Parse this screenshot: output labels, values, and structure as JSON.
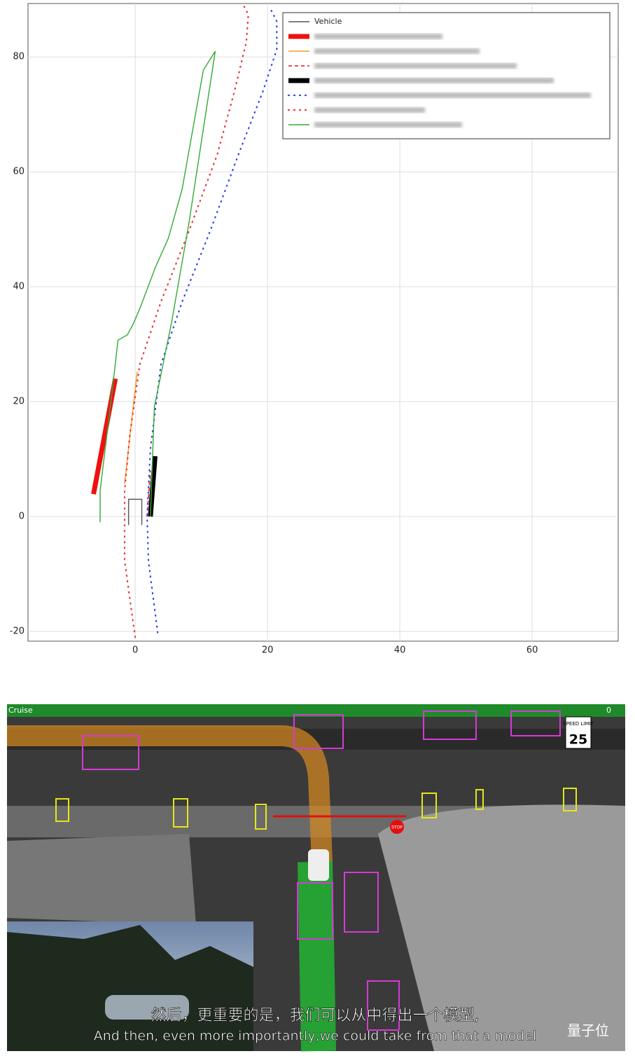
{
  "chart_data": {
    "type": "line",
    "xlim": [
      -16.2,
      73
    ],
    "ylim": [
      -21.7,
      89.3
    ],
    "xticks": [
      0,
      20,
      40,
      60
    ],
    "yticks": [
      -20,
      0,
      20,
      40,
      60,
      80
    ],
    "grid": true,
    "legend": "upper right",
    "series": [
      {
        "name": "Vehicle",
        "color": "#555555",
        "style": "line",
        "x": [
          -1,
          -1,
          1,
          1
        ],
        "values": [
          -1.5,
          3,
          3,
          -1.5
        ]
      },
      {
        "color": "#ee1111",
        "style": "thick",
        "x": [
          -6.3,
          -3
        ],
        "values": [
          3.9,
          24
        ]
      },
      {
        "color": "#f39c2a",
        "style": "line",
        "x": [
          -1.6,
          0.3
        ],
        "values": [
          5.7,
          25.2
        ]
      },
      {
        "color": "#ee1111",
        "style": "dashed",
        "x": [
          1.8,
          2.3
        ],
        "values": [
          0,
          8
        ]
      },
      {
        "color": "#000000",
        "style": "thick",
        "x": [
          2.3,
          3
        ],
        "values": [
          0,
          10.5
        ]
      },
      {
        "color": "#3344ee",
        "style": "dotted",
        "x": [
          3.4,
          2,
          1.8,
          2.3,
          3.9,
          7.1,
          11.3,
          15.6,
          19.3,
          21.4,
          21.4,
          20.3
        ],
        "values": [
          -20.2,
          -7.7,
          0,
          11.8,
          26.5,
          37.4,
          49.6,
          63,
          74,
          81.3,
          86.2,
          88.7
        ]
      },
      {
        "color": "#ee3333",
        "style": "dotted",
        "x": [
          0,
          -1.6,
          -1.6,
          -0.8,
          0.7,
          3.9,
          8.1,
          12.4,
          15,
          16.8,
          17.1,
          16.4
        ],
        "values": [
          -21,
          -7.7,
          4.5,
          14.3,
          26.5,
          37.4,
          49.6,
          63,
          74,
          82.6,
          87.4,
          88.9
        ]
      },
      {
        "color": "#33aa33",
        "style": "line",
        "x": [
          -5.3,
          -5.3,
          -3.5,
          -2.6,
          -1.2,
          -0.3,
          0.7,
          3.1,
          5,
          7.1,
          10.3,
          12.1,
          8.1,
          5.5,
          2.9,
          2.3
        ],
        "values": [
          -1,
          4.5,
          21.6,
          30.7,
          31.6,
          33.5,
          36.2,
          43.5,
          48.4,
          57,
          77.7,
          81,
          50.9,
          33.8,
          19.1,
          0
        ]
      }
    ]
  },
  "video_frame": {
    "brand": "Cruise",
    "speed_readout": "0",
    "speed_sign_title": "SPEED LIMIT",
    "speed_sign_value": "25",
    "stop_sign": "STOP",
    "subtitle_zh": "然后，更重要的是，我们可以从中得出一个模型,",
    "subtitle_en": "And then, even more importantly,we could take from that a model",
    "watermark": "量子位"
  }
}
